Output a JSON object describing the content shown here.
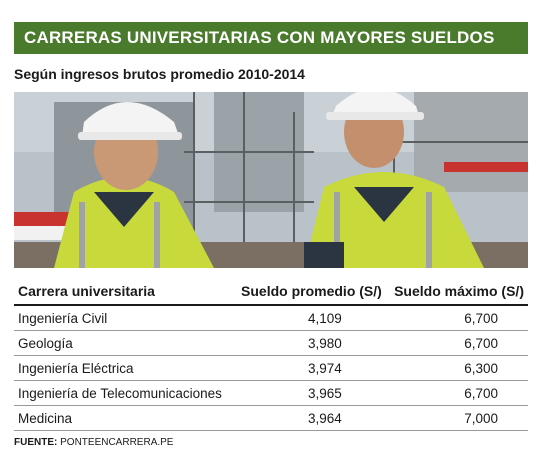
{
  "title": "CARRERAS UNIVERSITARIAS CON MAYORES SUELDOS",
  "subtitle": "Según ingresos brutos promedio 2010-2014",
  "chart_data": {
    "type": "table",
    "columns": [
      "Carrera universitaria",
      "Sueldo promedio (S/)",
      "Sueldo máximo (S/)"
    ],
    "rows": [
      [
        "Ingeniería Civil",
        "4,109",
        "6,700"
      ],
      [
        "Geología",
        "3,980",
        "6,700"
      ],
      [
        "Ingeniería Eléctrica",
        "3,974",
        "6,300"
      ],
      [
        "Ingeniería de Telecomunicaciones",
        "3,965",
        "6,700"
      ],
      [
        "Medicina",
        "3,964",
        "7,000"
      ]
    ]
  },
  "source": {
    "label": "FUENTE:",
    "value": "PONTEENCARRERA.PE"
  },
  "colors": {
    "header_bar": "#4a7a2c",
    "vest": "#c8d83a",
    "sky": "#b7c3cc"
  }
}
